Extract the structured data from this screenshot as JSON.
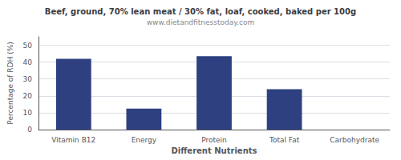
{
  "chart_data": {
    "type": "bar",
    "title": "Beef, ground, 70% lean meat / 30% fat, loaf, cooked, baked per 100g",
    "subtitle": "www.dietandfitnesstoday.com",
    "xlabel": "Different Nutrients",
    "ylabel": "Percentage of RDH (%)",
    "categories": [
      "Vitamin B12",
      "Energy",
      "Protein",
      "Total Fat",
      "Carbohydrate"
    ],
    "values": [
      42,
      12.5,
      43.5,
      24,
      0
    ],
    "color": "#2e4080",
    "ylim": [
      0,
      55
    ],
    "yticks": [
      0,
      10,
      20,
      30,
      40,
      50
    ],
    "grid": true
  }
}
